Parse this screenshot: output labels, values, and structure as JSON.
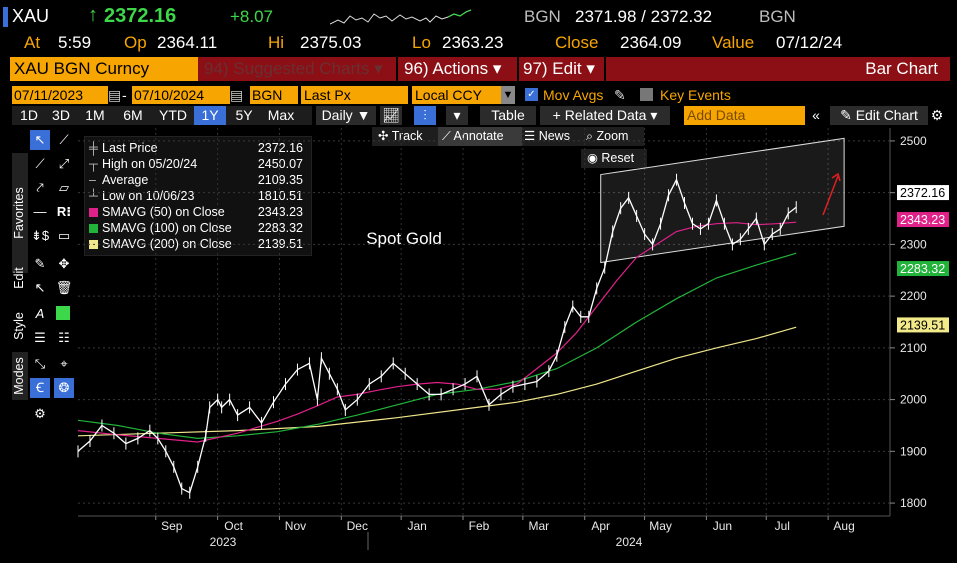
{
  "header": {
    "ticker": "XAU",
    "last": "2372.16",
    "change": "+8.07",
    "source": "BGN",
    "bid_ask": "2371.98 / 2372.32",
    "source2": "BGN",
    "time_label": "At",
    "time": "5:59",
    "open_label": "Op",
    "open": "2364.11",
    "high_label": "Hi",
    "high": "2375.03",
    "low_label": "Lo",
    "low": "2363.23",
    "close_label": "Close",
    "close": "2364.09",
    "value_label": "Value",
    "value": "07/12/24"
  },
  "menu": {
    "security": "XAU BGN Curncy",
    "suggested": "94) Suggested Charts",
    "actions": "96) Actions",
    "edit": "97) Edit",
    "chart_type": "Bar Chart"
  },
  "controls": {
    "start_date": "07/11/2023",
    "end_date": "07/10/2024",
    "source": "BGN",
    "field": "Last Px",
    "currency": "Local CCY",
    "mov_avgs": "Mov Avgs",
    "key_events": "Key Events"
  },
  "toolbar": {
    "periods": [
      "1D",
      "3D",
      "1M",
      "6M",
      "YTD",
      "1Y",
      "5Y",
      "Max"
    ],
    "active_period": "1Y",
    "frequency": "Daily",
    "table": "Table",
    "related": "Related Data",
    "add_data_placeholder": "Add Data",
    "edit_chart": "Edit Chart"
  },
  "subtoolbar": {
    "track": "Track",
    "annotate": "Annotate",
    "news": "News",
    "zoom": "Zoom",
    "reset": "Reset"
  },
  "side_tabs": [
    "Favorites",
    "Edit",
    "Style",
    "Modes"
  ],
  "colors": {
    "accent": "#f7a500",
    "up": "#3dd84a",
    "menu_bar": "#8b0f14",
    "price": "#ffffff",
    "sma50": "#e0218a",
    "sma100": "#21b33a",
    "sma200": "#f0e68c"
  },
  "chart_data": {
    "type": "line",
    "title": "Spot Gold",
    "ylim": [
      1775,
      2525
    ],
    "y_ticks": [
      1800,
      1900,
      2000,
      2100,
      2200,
      2300,
      2400,
      2500
    ],
    "x_ticks": [
      "Sep",
      "Oct",
      "Nov",
      "Dec",
      "Jan",
      "Feb",
      "Mar",
      "Apr",
      "May",
      "Jun",
      "Jul",
      "Aug"
    ],
    "x_ticks_pos_days": [
      47,
      78,
      109,
      140,
      170,
      201,
      231,
      262,
      292,
      323,
      353,
      384
    ],
    "year_labels": [
      "2023",
      "2024"
    ],
    "x_range_days": [
      0,
      407
    ],
    "x_origin": "2023-07-17",
    "legend": [
      {
        "name": "Last Price",
        "value": "2372.16"
      },
      {
        "name": "High on 05/20/24",
        "value": "2450.07"
      },
      {
        "name": "Average",
        "value": "2109.35"
      },
      {
        "name": "Low on 10/06/23",
        "value": "1810.51"
      },
      {
        "name": "SMAVG (50)  on Close",
        "value": "2343.23"
      },
      {
        "name": "SMAVG (100)  on Close",
        "value": "2283.32"
      },
      {
        "name": "SMAVG (200)  on Close",
        "value": "2139.51"
      }
    ],
    "price_tags": [
      "2372.16",
      "2343.23",
      "2283.32",
      "2139.51"
    ],
    "series": [
      {
        "name": "Last Price",
        "x": [
          0,
          6,
          12,
          18,
          24,
          30,
          36,
          40,
          44,
          48,
          52,
          56,
          60,
          64,
          66,
          70,
          72,
          76,
          80,
          86,
          92,
          98,
          104,
          110,
          116,
          120,
          122,
          126,
          130,
          134,
          140,
          146,
          152,
          158,
          164,
          170,
          176,
          182,
          188,
          194,
          200,
          206,
          212,
          218,
          224,
          230,
          236,
          240,
          244,
          248,
          252,
          256,
          260,
          264,
          268,
          272,
          276,
          280,
          284,
          288,
          292,
          296,
          300,
          304,
          308,
          312,
          316,
          320,
          324,
          328,
          332,
          336,
          340,
          344,
          348,
          352,
          356,
          360
        ],
        "y": [
          1900,
          1920,
          1950,
          1935,
          1915,
          1925,
          1940,
          1925,
          1900,
          1870,
          1828,
          1820,
          1870,
          1930,
          1985,
          2000,
          1985,
          2000,
          1970,
          1985,
          1955,
          1995,
          2030,
          2058,
          2070,
          2000,
          2080,
          2050,
          2020,
          1980,
          2000,
          2030,
          2045,
          2070,
          2050,
          2030,
          2010,
          2010,
          2020,
          2030,
          2045,
          1990,
          2010,
          2025,
          2030,
          2035,
          2055,
          2085,
          2140,
          2180,
          2160,
          2160,
          2215,
          2255,
          2325,
          2370,
          2390,
          2355,
          2320,
          2300,
          2340,
          2395,
          2425,
          2380,
          2340,
          2330,
          2340,
          2385,
          2340,
          2300,
          2310,
          2330,
          2350,
          2300,
          2320,
          2330,
          2360,
          2372
        ]
      },
      {
        "name": "SMAVG (50)",
        "x": [
          0,
          20,
          40,
          60,
          80,
          100,
          110,
          120,
          130,
          140,
          150,
          160,
          170,
          180,
          190,
          200,
          210,
          220,
          230,
          240,
          250,
          260,
          270,
          280,
          290,
          300,
          310,
          320,
          330,
          340,
          350,
          360
        ],
        "y": [
          1940,
          1932,
          1925,
          1918,
          1935,
          1958,
          1972,
          1988,
          2005,
          2010,
          2018,
          2025,
          2030,
          2033,
          2030,
          2020,
          2020,
          2030,
          2060,
          2090,
          2130,
          2180,
          2230,
          2275,
          2300,
          2325,
          2335,
          2340,
          2342,
          2338,
          2340,
          2343
        ]
      },
      {
        "name": "SMAVG (100)",
        "x": [
          0,
          20,
          40,
          60,
          80,
          100,
          120,
          140,
          160,
          180,
          200,
          220,
          240,
          260,
          280,
          300,
          320,
          340,
          360
        ],
        "y": [
          1960,
          1950,
          1935,
          1925,
          1930,
          1938,
          1952,
          1970,
          1990,
          2010,
          2020,
          2035,
          2060,
          2100,
          2150,
          2195,
          2235,
          2260,
          2283
        ]
      },
      {
        "name": "SMAVG (200)",
        "x": [
          0,
          40,
          80,
          120,
          160,
          200,
          220,
          240,
          260,
          280,
          300,
          320,
          340,
          360
        ],
        "y": [
          1930,
          1935,
          1940,
          1948,
          1965,
          1985,
          1995,
          2010,
          2030,
          2055,
          2080,
          2100,
          2118,
          2140
        ]
      }
    ],
    "annotations": {
      "channel_upper": {
        "x": [
          262,
          384
        ],
        "y": [
          2435,
          2505
        ]
      },
      "channel_lower": {
        "x": [
          262,
          384
        ],
        "y": [
          2265,
          2335
        ]
      }
    }
  }
}
